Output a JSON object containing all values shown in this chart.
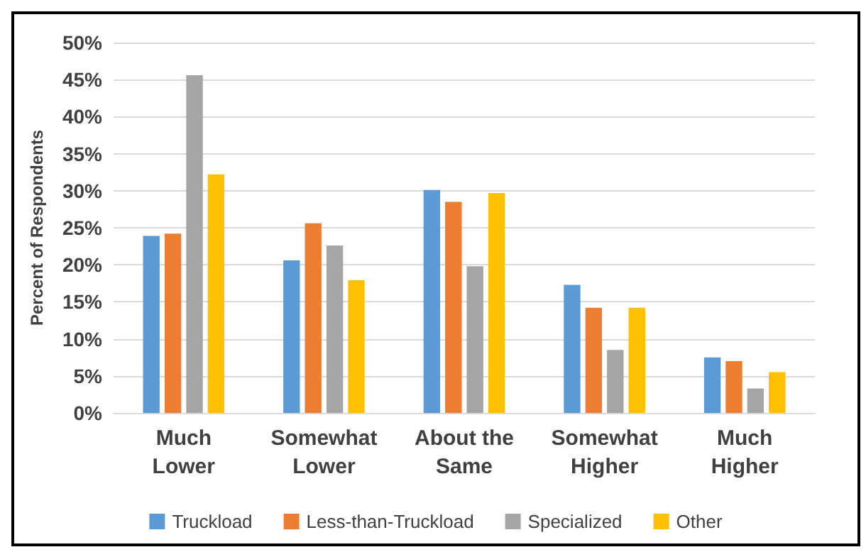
{
  "chart_data": {
    "type": "bar",
    "ylabel": "Percent of Respondents",
    "categories": [
      "Much\nLower",
      "Somewhat\nLower",
      "About the\nSame",
      "Somewhat\nHigher",
      "Much\nHigher"
    ],
    "series": [
      {
        "name": "Truckload",
        "color": "#5b9bd5",
        "values": [
          23.9,
          20.6,
          30.1,
          17.3,
          7.5
        ]
      },
      {
        "name": "Less-than-Truckload",
        "color": "#ed7d31",
        "values": [
          24.2,
          25.6,
          28.5,
          14.2,
          7.0
        ]
      },
      {
        "name": "Specialized",
        "color": "#a5a5a5",
        "values": [
          45.6,
          22.6,
          19.8,
          8.5,
          3.3
        ]
      },
      {
        "name": "Other",
        "color": "#ffc000",
        "values": [
          32.2,
          17.9,
          29.7,
          14.2,
          5.5
        ]
      }
    ],
    "ylim": [
      0,
      50
    ],
    "yticks": [
      {
        "value": 0,
        "label": "0%"
      },
      {
        "value": 5,
        "label": "5%"
      },
      {
        "value": 10,
        "label": "10%"
      },
      {
        "value": 15,
        "label": "15%"
      },
      {
        "value": 20,
        "label": "20%"
      },
      {
        "value": 25,
        "label": "25%"
      },
      {
        "value": 30,
        "label": "30%"
      },
      {
        "value": 35,
        "label": "35%"
      },
      {
        "value": 40,
        "label": "40%"
      },
      {
        "value": 45,
        "label": "45%"
      },
      {
        "value": 50,
        "label": "50%"
      }
    ],
    "grid": "y",
    "legend": "bottom"
  }
}
